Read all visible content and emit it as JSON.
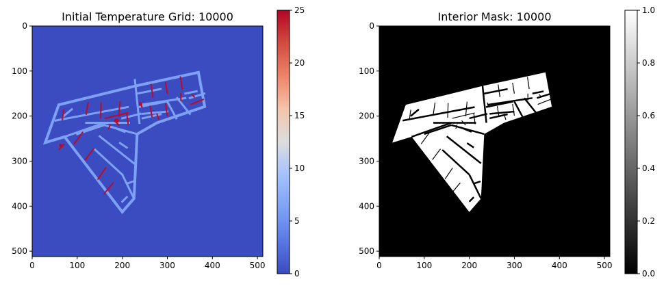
{
  "chart_data": [
    {
      "type": "heatmap",
      "title": "Initial Temperature Grid: 10000",
      "colormap": "coolwarm",
      "xlim": [
        0,
        512
      ],
      "ylim": [
        512,
        0
      ],
      "x_ticks": [
        0,
        100,
        200,
        300,
        400,
        500
      ],
      "y_ticks": [
        0,
        100,
        200,
        300,
        400,
        500
      ],
      "colorbar": {
        "range": [
          0,
          25
        ],
        "ticks": [
          0,
          5,
          10,
          15,
          20,
          25
        ]
      },
      "background_value": 0,
      "wall_value": 6,
      "heater_value": 25,
      "colors": {
        "background": "#3b4cc0",
        "wall": "#7ea1f6",
        "heater": "#bb0a25"
      },
      "floorplan": [
        {
          "x": 29,
          "y": 259
        },
        {
          "x": 72,
          "y": 246
        },
        {
          "x": 200,
          "y": 413
        },
        {
          "x": 226,
          "y": 383
        },
        {
          "x": 233,
          "y": 240
        },
        {
          "x": 277,
          "y": 215
        },
        {
          "x": 383,
          "y": 179
        },
        {
          "x": 369,
          "y": 103
        },
        {
          "x": 230,
          "y": 133
        },
        {
          "x": 59,
          "y": 175
        }
      ],
      "heaters": [
        {
          "x1": 60,
          "y1": 274,
          "x2": 70,
          "y2": 263
        },
        {
          "x1": 93,
          "y1": 262,
          "x2": 112,
          "y2": 236
        },
        {
          "x1": 118,
          "y1": 297,
          "x2": 136,
          "y2": 273
        },
        {
          "x1": 146,
          "y1": 340,
          "x2": 163,
          "y2": 315
        },
        {
          "x1": 160,
          "y1": 372,
          "x2": 180,
          "y2": 348
        },
        {
          "x1": 67,
          "y1": 208,
          "x2": 70,
          "y2": 186
        },
        {
          "x1": 120,
          "y1": 196,
          "x2": 124,
          "y2": 170
        },
        {
          "x1": 152,
          "y1": 204,
          "x2": 153,
          "y2": 171
        },
        {
          "x1": 192,
          "y1": 200,
          "x2": 195,
          "y2": 168
        },
        {
          "x1": 162,
          "y1": 205,
          "x2": 212,
          "y2": 193
        },
        {
          "x1": 210,
          "y1": 195,
          "x2": 213,
          "y2": 218
        },
        {
          "x1": 183,
          "y1": 210,
          "x2": 192,
          "y2": 220
        },
        {
          "x1": 173,
          "y1": 219,
          "x2": 170,
          "y2": 228
        },
        {
          "x1": 264,
          "y1": 130,
          "x2": 268,
          "y2": 158
        },
        {
          "x1": 296,
          "y1": 126,
          "x2": 300,
          "y2": 150
        },
        {
          "x1": 329,
          "y1": 113,
          "x2": 333,
          "y2": 140
        },
        {
          "x1": 262,
          "y1": 178,
          "x2": 266,
          "y2": 202
        },
        {
          "x1": 296,
          "y1": 173,
          "x2": 300,
          "y2": 199
        },
        {
          "x1": 240,
          "y1": 170,
          "x2": 244,
          "y2": 181
        },
        {
          "x1": 352,
          "y1": 174,
          "x2": 380,
          "y2": 163
        },
        {
          "x1": 330,
          "y1": 150,
          "x2": 330,
          "y2": 165
        },
        {
          "x1": 355,
          "y1": 152,
          "x2": 360,
          "y2": 158
        },
        {
          "x1": 277,
          "y1": 195,
          "x2": 281,
          "y2": 208
        }
      ]
    },
    {
      "type": "heatmap",
      "title": "Interior Mask: 10000",
      "colormap": "gray",
      "xlim": [
        0,
        512
      ],
      "ylim": [
        512,
        0
      ],
      "x_ticks": [
        0,
        100,
        200,
        300,
        400,
        500
      ],
      "y_ticks": [
        0,
        100,
        200,
        300,
        400,
        500
      ],
      "colorbar": {
        "range": [
          0.0,
          1.0
        ],
        "ticks": [
          "0.0",
          "0.2",
          "0.4",
          "0.6",
          "0.8",
          "1.0"
        ]
      },
      "background_value": 0,
      "interior_value": 1,
      "colors": {
        "background": "#000000",
        "interior": "#ffffff"
      }
    }
  ]
}
